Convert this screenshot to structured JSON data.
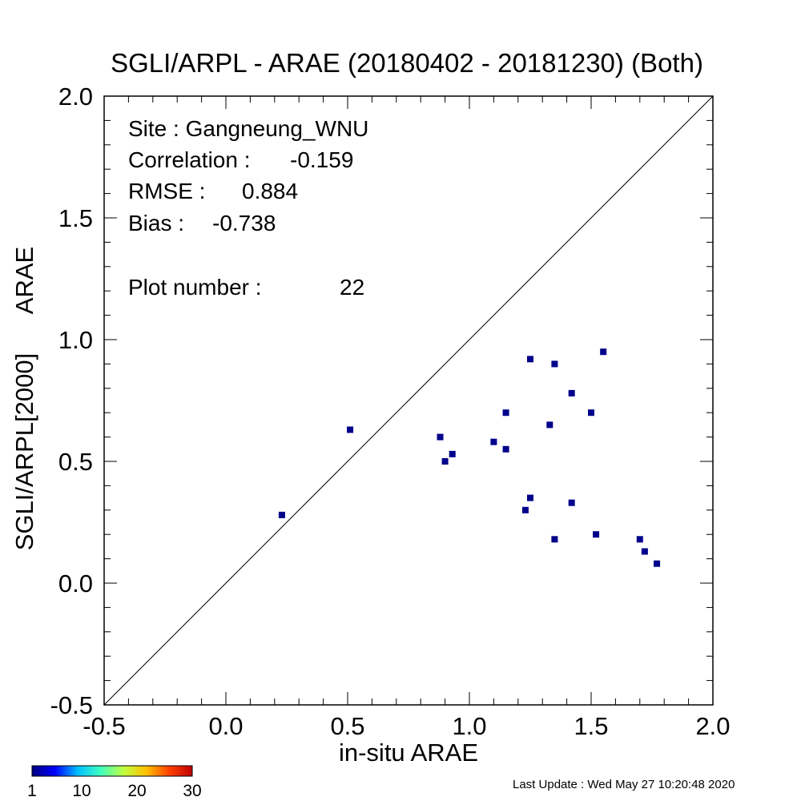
{
  "chart_data": {
    "type": "scatter",
    "title": "SGLI/ARPL - ARAE (20180402 - 20181230) (Both)",
    "xlabel": "in-situ ARAE",
    "ylabel_left": "SGLI/ARPL[2000]",
    "ylabel_right": "ARAE",
    "xlim": [
      -0.5,
      2.0
    ],
    "ylim": [
      -0.5,
      2.0
    ],
    "xticks": [
      -0.5,
      0.0,
      0.5,
      1.0,
      1.5,
      2.0
    ],
    "yticks": [
      -0.5,
      0.0,
      0.5,
      1.0,
      1.5,
      2.0
    ],
    "x_tick_labels": [
      "-0.5",
      "0.0",
      "0.5",
      "1.0",
      "1.5",
      "2.0"
    ],
    "y_tick_labels": [
      "-0.5",
      "0.0",
      "0.5",
      "1.0",
      "1.5",
      "2.0"
    ],
    "one_to_one_line": true,
    "grid": false,
    "point_color": "#00008b",
    "points": [
      {
        "x": 0.23,
        "y": 0.28
      },
      {
        "x": 0.51,
        "y": 0.63
      },
      {
        "x": 0.88,
        "y": 0.6
      },
      {
        "x": 0.9,
        "y": 0.5
      },
      {
        "x": 0.93,
        "y": 0.53
      },
      {
        "x": 1.1,
        "y": 0.58
      },
      {
        "x": 1.15,
        "y": 0.7
      },
      {
        "x": 1.15,
        "y": 0.55
      },
      {
        "x": 1.23,
        "y": 0.3
      },
      {
        "x": 1.25,
        "y": 0.92
      },
      {
        "x": 1.25,
        "y": 0.35
      },
      {
        "x": 1.33,
        "y": 0.65
      },
      {
        "x": 1.35,
        "y": 0.9
      },
      {
        "x": 1.35,
        "y": 0.18
      },
      {
        "x": 1.42,
        "y": 0.78
      },
      {
        "x": 1.42,
        "y": 0.33
      },
      {
        "x": 1.5,
        "y": 0.7
      },
      {
        "x": 1.52,
        "y": 0.2
      },
      {
        "x": 1.55,
        "y": 0.95
      },
      {
        "x": 1.7,
        "y": 0.18
      },
      {
        "x": 1.72,
        "y": 0.13
      },
      {
        "x": 1.77,
        "y": 0.08
      }
    ],
    "stats": {
      "site_label": "Site : Gangneung_WNU",
      "correlation_label": "Correlation :",
      "correlation_value": "-0.159",
      "rmse_label": "RMSE :",
      "rmse_value": "0.884",
      "bias_label": "Bias :",
      "bias_value": "-0.738",
      "plot_number_label": "Plot number :",
      "plot_number_value": "22"
    },
    "colorbar": {
      "tick_labels": [
        "1",
        "10",
        "20",
        "30"
      ],
      "tick_values": [
        1,
        10,
        20,
        30
      ],
      "range": [
        1,
        30
      ],
      "colors": [
        "#00007f",
        "#0000ff",
        "#00bfff",
        "#40ffbf",
        "#bfff40",
        "#ffbf00",
        "#ff4000",
        "#bf0000"
      ]
    }
  },
  "footer": {
    "last_update": "Last Update : Wed May 27 10:20:48 2020"
  }
}
